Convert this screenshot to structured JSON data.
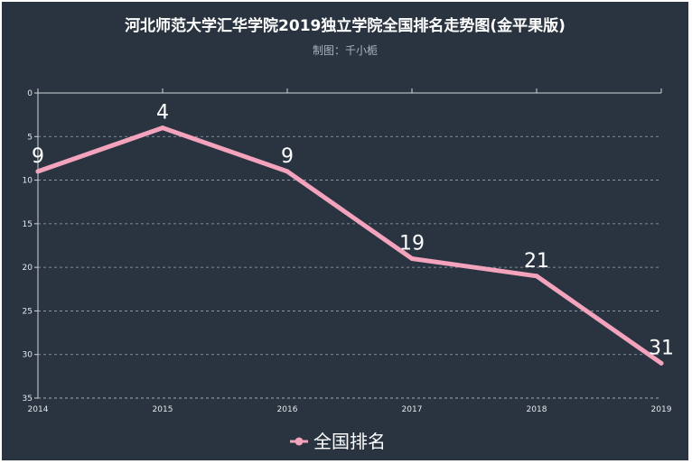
{
  "chart_data": {
    "type": "line",
    "title": "河北师范大学汇华学院2019独立学院全国排名走势图(金平果版)",
    "subtitle": "制图：千小栀",
    "categories": [
      "2014",
      "2015",
      "2016",
      "2017",
      "2018",
      "2019"
    ],
    "series": [
      {
        "name": "全国排名",
        "values": [
          9,
          4,
          9,
          19,
          21,
          31
        ]
      }
    ],
    "y_axis": {
      "min": 0,
      "max": 35,
      "inverse": true,
      "ticks": [
        0,
        5,
        10,
        15,
        20,
        25,
        30,
        35
      ]
    },
    "grid": true,
    "legend_position": "bottom",
    "colors": {
      "background": "#2a3440",
      "line": "#f4a3bd",
      "text": "#ffffff",
      "grid": "#9aa3ad"
    }
  }
}
